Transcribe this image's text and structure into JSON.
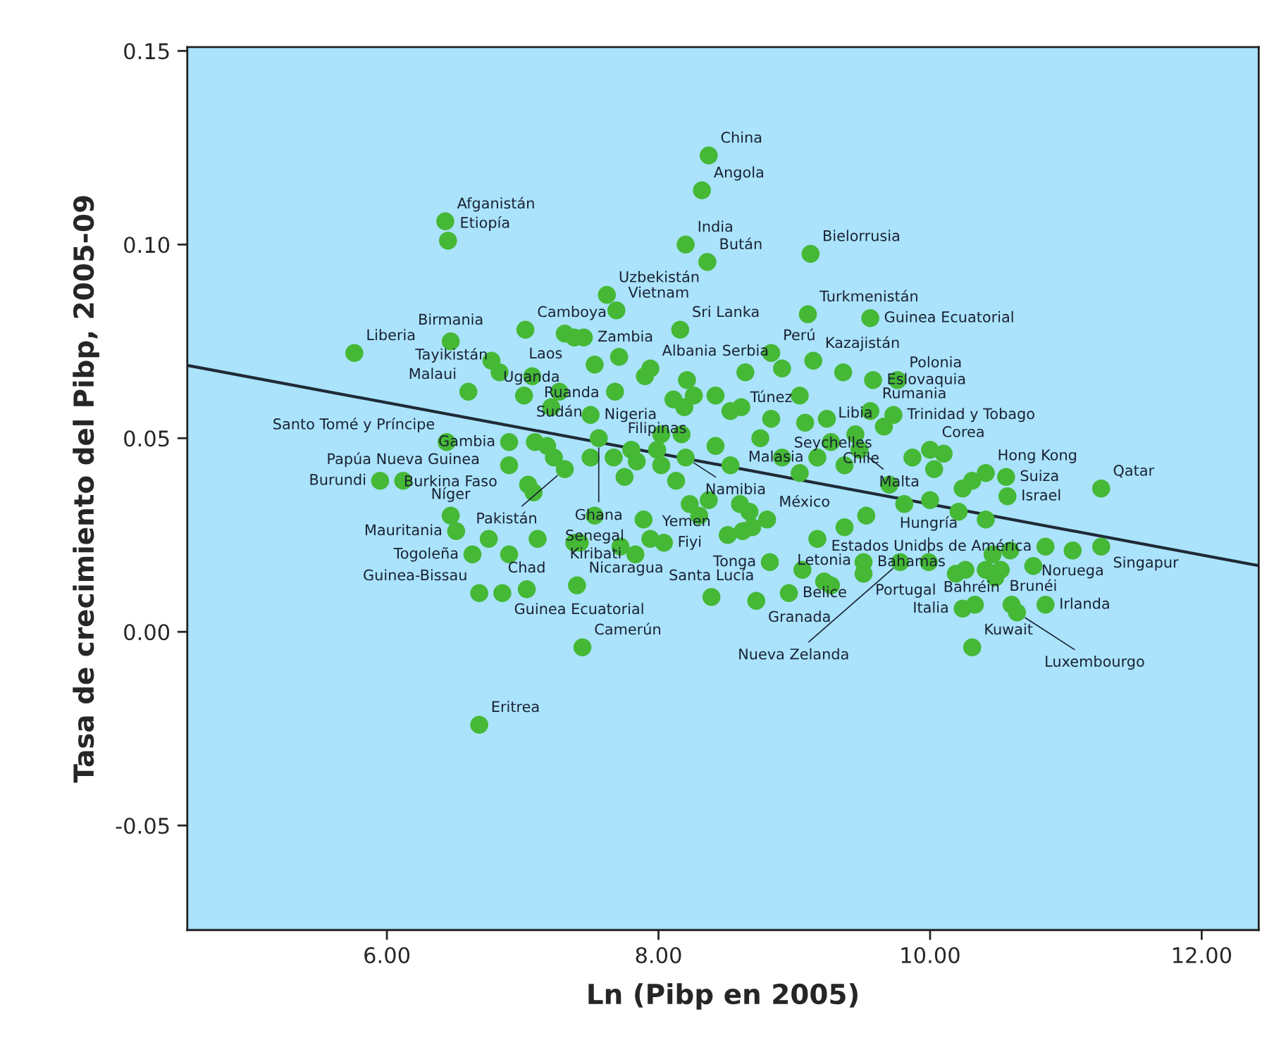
{
  "chart_data": {
    "type": "scatter",
    "xlabel": "Ln (Pibp en 2005)",
    "ylabel": "Tasa de crecimiento del Pibp, 2005-09",
    "xlim": [
      4.53,
      12.42
    ],
    "ylim": [
      -0.077,
      0.151
    ],
    "xticks": [
      {
        "value": 6,
        "label": "6.00"
      },
      {
        "value": 8,
        "label": "8.00"
      },
      {
        "value": 10,
        "label": "10.00"
      },
      {
        "value": 12,
        "label": "12.00"
      }
    ],
    "yticks": [
      {
        "value": -0.05,
        "label": "-0.05"
      },
      {
        "value": 0.0,
        "label": "0.00"
      },
      {
        "value": 0.05,
        "label": "0.05"
      },
      {
        "value": 0.1,
        "label": "0.10"
      },
      {
        "value": 0.15,
        "label": "0.15"
      }
    ],
    "grid": false,
    "legend": false,
    "marker": "circle",
    "series": [
      {
        "type": "scatter",
        "color": "#45b836",
        "x": [
          8.37,
          8.32,
          6.43,
          6.45,
          8.2,
          8.36,
          9.12,
          7.62,
          7.69,
          7.31,
          7.38,
          7.45,
          7.02,
          6.47,
          5.76,
          8.16,
          9.1,
          9.56,
          7.71,
          7.53,
          6.77,
          6.83,
          7.07,
          7.94,
          7.9,
          8.21,
          8.83,
          8.91,
          9.14,
          9.36,
          9.58,
          9.76,
          8.64,
          6.6,
          7.01,
          7.21,
          7.27,
          7.5,
          7.68,
          8.11,
          8.26,
          8.19,
          8.42,
          8.53,
          8.61,
          9.04,
          8.83,
          9.08,
          9.24,
          9.56,
          9.73,
          9.45,
          6.44,
          6.9,
          7.09,
          7.18,
          6.9,
          7.56,
          7.5,
          7.67,
          7.8,
          7.84,
          7.75,
          7.31,
          7.08,
          7.04,
          5.95,
          6.12,
          8.02,
          7.99,
          8.02,
          8.13,
          8.17,
          8.2,
          8.42,
          8.53,
          8.75,
          8.91,
          9.04,
          9.17,
          9.27,
          9.37,
          9.48,
          9.66,
          10.0,
          10.1,
          9.87,
          9.7,
          10.24,
          10.31,
          10.41,
          10.56,
          10.57,
          11.26,
          10.03,
          8.23,
          8.3,
          8.37,
          8.6,
          8.67,
          8.51,
          8.62,
          8.69,
          8.8,
          6.47,
          6.51,
          6.75,
          6.63,
          6.9,
          7.11,
          7.38,
          7.53,
          7.72,
          7.83,
          7.94,
          8.04,
          7.89,
          9.17,
          9.37,
          9.53,
          9.81,
          10.0,
          10.21,
          10.41,
          8.82,
          9.06,
          9.22,
          9.27,
          9.51,
          9.51,
          9.78,
          9.99,
          10.19,
          10.26,
          10.41,
          10.48,
          10.52,
          10.76,
          10.46,
          10.59,
          10.85,
          11.05,
          11.26,
          8.39,
          8.72,
          8.96,
          10.24,
          10.33,
          10.6,
          10.64,
          10.85,
          10.31,
          7.44,
          6.68,
          6.85,
          7.03,
          7.4,
          7.42,
          6.68,
          7.23
        ],
        "values": [
          0.123,
          0.114,
          0.106,
          0.101,
          0.1,
          0.0955,
          0.0976,
          0.087,
          0.083,
          0.077,
          0.076,
          0.076,
          0.078,
          0.075,
          0.072,
          0.078,
          0.082,
          0.081,
          0.071,
          0.069,
          0.07,
          0.067,
          0.066,
          0.068,
          0.066,
          0.065,
          0.072,
          0.068,
          0.07,
          0.067,
          0.065,
          0.065,
          0.067,
          0.062,
          0.061,
          0.058,
          0.062,
          0.056,
          0.062,
          0.06,
          0.061,
          0.058,
          0.061,
          0.057,
          0.058,
          0.061,
          0.055,
          0.054,
          0.055,
          0.057,
          0.056,
          0.051,
          0.049,
          0.049,
          0.049,
          0.048,
          0.043,
          0.05,
          0.045,
          0.045,
          0.047,
          0.044,
          0.04,
          0.042,
          0.036,
          0.038,
          0.039,
          0.039,
          0.051,
          0.047,
          0.043,
          0.039,
          0.051,
          0.045,
          0.048,
          0.043,
          0.05,
          0.045,
          0.041,
          0.045,
          0.049,
          0.043,
          0.047,
          0.053,
          0.047,
          0.046,
          0.045,
          0.038,
          0.037,
          0.039,
          0.041,
          0.04,
          0.035,
          0.037,
          0.042,
          0.033,
          0.03,
          0.034,
          0.033,
          0.031,
          0.025,
          0.026,
          0.027,
          0.029,
          0.03,
          0.026,
          0.024,
          0.02,
          0.02,
          0.024,
          0.023,
          0.03,
          0.022,
          0.02,
          0.024,
          0.023,
          0.029,
          0.024,
          0.027,
          0.03,
          0.033,
          0.034,
          0.031,
          0.029,
          0.018,
          0.016,
          0.013,
          0.012,
          0.018,
          0.015,
          0.018,
          0.018,
          0.015,
          0.016,
          0.016,
          0.014,
          0.016,
          0.017,
          0.02,
          0.021,
          0.022,
          0.021,
          0.022,
          0.009,
          0.008,
          0.01,
          0.006,
          0.007,
          0.007,
          0.005,
          0.007,
          -0.004,
          -0.004,
          0.01,
          0.01,
          0.011,
          0.012,
          0.023,
          -0.024,
          0.045
        ]
      },
      {
        "type": "line",
        "color": "#1f2a36",
        "marker": "none",
        "line_style": "solid",
        "x": [
          4.53,
          12.42
        ],
        "values": [
          0.0688,
          0.0171
        ]
      }
    ],
    "annotations": [
      {
        "text": "China",
        "x": 8.37,
        "y": 0.123
      },
      {
        "text": "Angola",
        "x": 8.32,
        "y": 0.114
      },
      {
        "text": "Afganistán",
        "x": 6.43,
        "y": 0.106
      },
      {
        "text": "India",
        "x": 8.2,
        "y": 0.1
      },
      {
        "text": "Bután",
        "x": 8.36,
        "y": 0.0955
      },
      {
        "text": "Bielorrusia",
        "x": 9.12,
        "y": 0.0976
      },
      {
        "text": "Etiopía",
        "x": 6.45,
        "y": 0.101
      },
      {
        "text": "Uzbekistán",
        "x": 7.62,
        "y": 0.087
      },
      {
        "text": "Turkmenistán",
        "x": 9.1,
        "y": 0.082
      },
      {
        "text": "Zambia",
        "x": 7.45,
        "y": 0.076
      },
      {
        "text": "Guinea Ecuatorial",
        "x": 9.56,
        "y": 0.081
      },
      {
        "text": "Birmania",
        "x": 6.47,
        "y": 0.075
      },
      {
        "text": "Camboya",
        "x": 7.02,
        "y": 0.078
      },
      {
        "text": "Laos",
        "x": 7.38,
        "y": 0.076
      },
      {
        "text": "Vietnam",
        "x": 7.69,
        "y": 0.083
      },
      {
        "text": "Liberia",
        "x": 5.76,
        "y": 0.072
      },
      {
        "text": "Malaui",
        "x": 6.6,
        "y": 0.062
      },
      {
        "text": "Tayikistán",
        "x": 6.83,
        "y": 0.067
      },
      {
        "text": "Sri Lanka",
        "x": 8.16,
        "y": 0.078
      },
      {
        "text": "Perú",
        "x": 8.83,
        "y": 0.072
      },
      {
        "text": "Kazajistán",
        "x": 9.14,
        "y": 0.07
      },
      {
        "text": "Polonia",
        "x": 9.76,
        "y": 0.065
      },
      {
        "text": "Uganda",
        "x": 6.77,
        "y": 0.07
      },
      {
        "text": "Ruanda",
        "x": 7.07,
        "y": 0.066
      },
      {
        "text": "Sudán",
        "x": 7.27,
        "y": 0.062
      },
      {
        "text": "Albania",
        "x": 7.94,
        "y": 0.068
      },
      {
        "text": "Eslovaquia",
        "x": 9.58,
        "y": 0.065
      },
      {
        "text": "Nigeria",
        "x": 7.5,
        "y": 0.056
      },
      {
        "text": "Serbia",
        "x": 8.64,
        "y": 0.067
      },
      {
        "text": "Rumania",
        "x": 9.56,
        "y": 0.057
      },
      {
        "text": "Trinidad y Tobago",
        "x": 9.73,
        "y": 0.056
      },
      {
        "text": "Santo Tomé y Príncipe",
        "x": 6.44,
        "y": 0.049
      },
      {
        "text": "Gambia",
        "x": 6.9,
        "y": 0.049
      },
      {
        "text": "Ghana",
        "x": 7.56,
        "y": 0.05
      },
      {
        "text": "Túnez",
        "x": 8.83,
        "y": 0.055
      },
      {
        "text": "Libia",
        "x": 9.45,
        "y": 0.051
      },
      {
        "text": "Corea",
        "x": 10.0,
        "y": 0.047
      },
      {
        "text": "Hong Kong",
        "x": 10.41,
        "y": 0.041
      },
      {
        "text": "Papúa Nueva Guinea",
        "x": 6.12,
        "y": 0.039
      },
      {
        "text": "Filipinas",
        "x": 7.99,
        "y": 0.047
      },
      {
        "text": "Qatar",
        "x": 11.26,
        "y": 0.037
      },
      {
        "text": "Seychelles",
        "x": 9.66,
        "y": 0.053
      },
      {
        "text": "Namibia",
        "x": 8.2,
        "y": 0.045
      },
      {
        "text": "Chile",
        "x": 9.27,
        "y": 0.049
      },
      {
        "text": "Suiza",
        "x": 10.56,
        "y": 0.04
      },
      {
        "text": "Burkina Faso",
        "x": 6.9,
        "y": 0.043
      },
      {
        "text": "Pakistán",
        "x": 7.31,
        "y": 0.042
      },
      {
        "text": "Burundi",
        "x": 5.95,
        "y": 0.039
      },
      {
        "text": "Níger",
        "x": 6.47,
        "y": 0.03
      },
      {
        "text": "Mauritania",
        "x": 6.51,
        "y": 0.026
      },
      {
        "text": "Malasia",
        "x": 9.17,
        "y": 0.045
      },
      {
        "text": "Malta",
        "x": 9.48,
        "y": 0.047
      },
      {
        "text": "Israel",
        "x": 10.57,
        "y": 0.035
      },
      {
        "text": "Singapur",
        "x": 11.26,
        "y": 0.022
      },
      {
        "text": "Yemen",
        "x": 7.94,
        "y": 0.024
      },
      {
        "text": "México",
        "x": 8.8,
        "y": 0.029
      },
      {
        "text": "Estados Unidos de América",
        "x": 10.85,
        "y": 0.022
      },
      {
        "text": "Togoleña",
        "x": 6.63,
        "y": 0.02
      },
      {
        "text": "Senegal",
        "x": 7.53,
        "y": 0.03
      },
      {
        "text": "Tonga",
        "x": 8.82,
        "y": 0.018
      },
      {
        "text": "Guinea-Bissau",
        "x": 6.68,
        "y": 0.01
      },
      {
        "text": "Hungría",
        "x": 9.99,
        "y": 0.018
      },
      {
        "text": "Noruega",
        "x": 11.05,
        "y": 0.021
      },
      {
        "text": "Letonia",
        "x": 9.22,
        "y": 0.013
      },
      {
        "text": "Guinea Ecuatorial",
        "x": 6.85,
        "y": 0.01
      },
      {
        "text": "Nicaragua",
        "x": 7.4,
        "y": 0.012
      },
      {
        "text": "Granada",
        "x": 8.72,
        "y": 0.008
      },
      {
        "text": "Brunéi",
        "x": 10.76,
        "y": 0.017
      },
      {
        "text": "Camerún",
        "x": 7.44,
        "y": -0.004
      },
      {
        "text": "Santa Lucía",
        "x": 8.39,
        "y": 0.009
      },
      {
        "text": "Portugal",
        "x": 9.51,
        "y": 0.015
      },
      {
        "text": "Italia",
        "x": 10.24,
        "y": 0.006
      },
      {
        "text": "Kuwait",
        "x": 10.31,
        "y": -0.004
      },
      {
        "text": "Irlanda",
        "x": 10.85,
        "y": 0.007
      },
      {
        "text": "Luxembourgo",
        "x": 10.64,
        "y": 0.005
      },
      {
        "text": "Chad",
        "x": 7.03,
        "y": 0.011
      },
      {
        "text": "Fiyi",
        "x": 8.04,
        "y": 0.023
      },
      {
        "text": "Nueva Zelanda",
        "x": 9.78,
        "y": 0.018
      },
      {
        "text": "Bahréin",
        "x": 10.6,
        "y": 0.007
      },
      {
        "text": "Belice",
        "x": 8.96,
        "y": 0.01
      },
      {
        "text": "Kiribati",
        "x": 7.83,
        "y": 0.02
      },
      {
        "text": "Bahamas",
        "x": 9.51,
        "y": 0.018
      },
      {
        "text": "Eritrea",
        "x": 6.68,
        "y": -0.024
      }
    ]
  }
}
